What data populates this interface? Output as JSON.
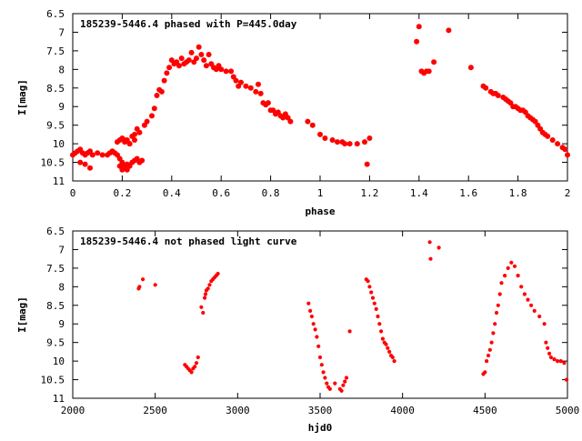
{
  "accent_color": "#ff0000",
  "chart_data": [
    {
      "type": "scatter",
      "title": "185239-5446.4 phased with P=445.0day",
      "xlabel": "phase",
      "ylabel": "I[mag]",
      "xlim": [
        0,
        2
      ],
      "ylim": [
        11,
        6.5
      ],
      "y_inverted": true,
      "grid": false,
      "legend": "none",
      "marker_color": "#ff0000",
      "x_ticks": [
        "0",
        "0.2",
        "0.4",
        "0.6",
        "0.8",
        "1",
        "1.2",
        "1.4",
        "1.6",
        "1.8",
        "2"
      ],
      "y_ticks": [
        "6.5",
        "7",
        "7.5",
        "8",
        "8.5",
        "9",
        "9.5",
        "10",
        "10.5",
        "11"
      ],
      "series": [
        {
          "x": [
            0.0,
            0.01,
            0.02,
            0.03,
            0.04,
            0.05,
            0.06,
            0.07,
            0.08,
            0.1,
            0.12,
            0.14,
            0.15,
            0.16,
            0.17,
            0.18,
            0.19,
            0.19,
            0.2,
            0.2,
            0.21,
            0.22,
            0.22,
            0.23,
            0.24,
            0.25,
            0.26,
            0.27,
            0.28,
            0.18,
            0.19,
            0.2,
            0.21,
            0.22,
            0.23,
            0.24,
            0.25,
            0.26,
            0.03,
            0.05,
            0.07,
            0.21,
            0.23,
            0.25,
            0.27,
            0.29,
            0.3,
            0.32,
            0.33,
            0.34,
            0.35,
            0.36,
            0.37,
            0.38,
            0.39,
            0.4,
            0.41,
            0.42,
            0.43,
            0.44,
            0.45,
            0.46,
            0.47,
            0.48,
            0.49,
            0.5,
            0.51,
            0.52,
            0.53,
            0.54,
            0.55,
            0.56,
            0.57,
            0.58,
            0.59,
            0.6,
            0.62,
            0.64,
            0.65,
            0.66,
            0.67,
            0.68,
            0.7,
            0.72,
            0.74,
            0.75,
            0.76,
            0.77,
            0.78,
            0.79,
            0.8,
            0.81,
            0.82,
            0.83,
            0.84,
            0.85,
            0.86,
            0.87,
            0.88,
            0.95,
            0.97,
            1.0,
            1.02,
            1.05,
            1.07,
            1.09,
            1.1,
            1.12,
            1.15,
            1.18,
            1.2,
            1.19,
            1.39,
            1.4,
            1.41,
            1.42,
            1.43,
            1.44,
            1.46,
            1.52,
            1.61,
            1.66,
            1.67,
            1.69,
            1.7,
            1.71,
            1.72,
            1.74,
            1.75,
            1.76,
            1.77,
            1.78,
            1.79,
            1.8,
            1.81,
            1.82,
            1.83,
            1.84,
            1.85,
            1.86,
            1.87,
            1.88,
            1.89,
            1.9,
            1.91,
            1.92,
            1.94,
            1.96,
            1.98,
            1.99,
            2.0
          ],
          "y": [
            10.3,
            10.25,
            10.2,
            10.15,
            10.25,
            10.3,
            10.25,
            10.2,
            10.3,
            10.25,
            10.3,
            10.3,
            10.25,
            10.2,
            10.25,
            10.3,
            10.4,
            10.6,
            10.7,
            10.5,
            10.6,
            10.7,
            10.55,
            10.6,
            10.5,
            10.45,
            10.4,
            10.5,
            10.45,
            9.95,
            9.9,
            9.85,
            9.95,
            9.9,
            10.0,
            9.8,
            9.75,
            9.6,
            10.5,
            10.55,
            10.65,
            9.9,
            10.0,
            9.9,
            9.7,
            9.5,
            9.4,
            9.25,
            9.05,
            8.7,
            8.55,
            8.6,
            8.3,
            8.1,
            7.95,
            7.75,
            7.85,
            7.8,
            7.9,
            7.7,
            7.85,
            7.8,
            7.75,
            7.55,
            7.8,
            7.7,
            7.4,
            7.6,
            7.75,
            7.9,
            7.6,
            7.85,
            7.95,
            8.0,
            7.9,
            8.0,
            8.05,
            8.05,
            8.2,
            8.3,
            8.45,
            8.35,
            8.45,
            8.5,
            8.6,
            8.4,
            8.65,
            8.9,
            8.95,
            8.9,
            9.1,
            9.1,
            9.2,
            9.15,
            9.25,
            9.3,
            9.2,
            9.3,
            9.4,
            9.4,
            9.5,
            9.75,
            9.85,
            9.9,
            9.95,
            9.95,
            10.0,
            10.0,
            10.0,
            9.95,
            9.85,
            10.55,
            7.25,
            6.85,
            8.05,
            8.1,
            8.05,
            8.05,
            7.8,
            6.95,
            7.95,
            8.45,
            8.5,
            8.6,
            8.65,
            8.65,
            8.7,
            8.75,
            8.8,
            8.85,
            8.9,
            9.0,
            9.0,
            9.05,
            9.1,
            9.1,
            9.15,
            9.25,
            9.3,
            9.35,
            9.4,
            9.5,
            9.6,
            9.7,
            9.75,
            9.8,
            9.9,
            10.0,
            10.1,
            10.15,
            10.3
          ]
        }
      ]
    },
    {
      "type": "scatter",
      "title": "185239-5446.4 not phased light curve",
      "xlabel": "hjd0",
      "ylabel": "I[mag]",
      "xlim": [
        2000,
        5000
      ],
      "ylim": [
        11,
        6.5
      ],
      "y_inverted": true,
      "grid": false,
      "legend": "none",
      "marker_color": "#ff0000",
      "x_ticks": [
        "2000",
        "2500",
        "3000",
        "3500",
        "4000",
        "4500",
        "5000"
      ],
      "y_ticks": [
        "6.5",
        "7",
        "7.5",
        "8",
        "8.5",
        "9",
        "9.5",
        "10",
        "10.5",
        "11"
      ],
      "series": [
        {
          "x": [
            2400,
            2405,
            2425,
            2500,
            2680,
            2690,
            2700,
            2710,
            2720,
            2730,
            2740,
            2750,
            2760,
            2780,
            2790,
            2800,
            2805,
            2810,
            2820,
            2830,
            2840,
            2850,
            2860,
            2870,
            2880,
            3430,
            3440,
            3450,
            3460,
            3470,
            3480,
            3490,
            3500,
            3510,
            3520,
            3530,
            3540,
            3550,
            3560,
            3590,
            3620,
            3630,
            3640,
            3650,
            3660,
            3680,
            3780,
            3790,
            3800,
            3810,
            3820,
            3830,
            3840,
            3850,
            3860,
            3870,
            3880,
            3890,
            3900,
            3910,
            3920,
            3930,
            3940,
            3950,
            4165,
            4170,
            4220,
            4490,
            4500,
            4510,
            4520,
            4530,
            4540,
            4550,
            4560,
            4570,
            4580,
            4590,
            4600,
            4620,
            4640,
            4660,
            4680,
            4700,
            4720,
            4740,
            4760,
            4780,
            4800,
            4830,
            4860,
            4870,
            4880,
            4890,
            4900,
            4920,
            4940,
            4960,
            4980,
            4995
          ],
          "y": [
            8.05,
            8.0,
            7.8,
            7.95,
            10.1,
            10.15,
            10.2,
            10.25,
            10.3,
            10.2,
            10.15,
            10.05,
            9.9,
            8.55,
            8.7,
            8.3,
            8.2,
            8.1,
            8.05,
            7.95,
            7.85,
            7.8,
            7.75,
            7.7,
            7.65,
            8.45,
            8.65,
            8.8,
            9.0,
            9.15,
            9.35,
            9.6,
            9.9,
            10.1,
            10.3,
            10.45,
            10.6,
            10.7,
            10.75,
            10.6,
            10.75,
            10.8,
            10.65,
            10.55,
            10.45,
            9.2,
            7.8,
            7.85,
            8.0,
            8.15,
            8.3,
            8.45,
            8.6,
            8.8,
            9.0,
            9.2,
            9.4,
            9.5,
            9.55,
            9.65,
            9.75,
            9.85,
            9.9,
            10.0,
            6.8,
            7.25,
            6.95,
            10.35,
            10.3,
            10.0,
            9.85,
            9.7,
            9.5,
            9.25,
            9.0,
            8.7,
            8.5,
            8.2,
            7.9,
            7.7,
            7.5,
            7.35,
            7.45,
            7.7,
            8.0,
            8.2,
            8.35,
            8.5,
            8.65,
            8.8,
            9.0,
            9.5,
            9.65,
            9.8,
            9.9,
            9.95,
            10.0,
            10.0,
            10.05,
            10.5
          ]
        }
      ]
    }
  ]
}
